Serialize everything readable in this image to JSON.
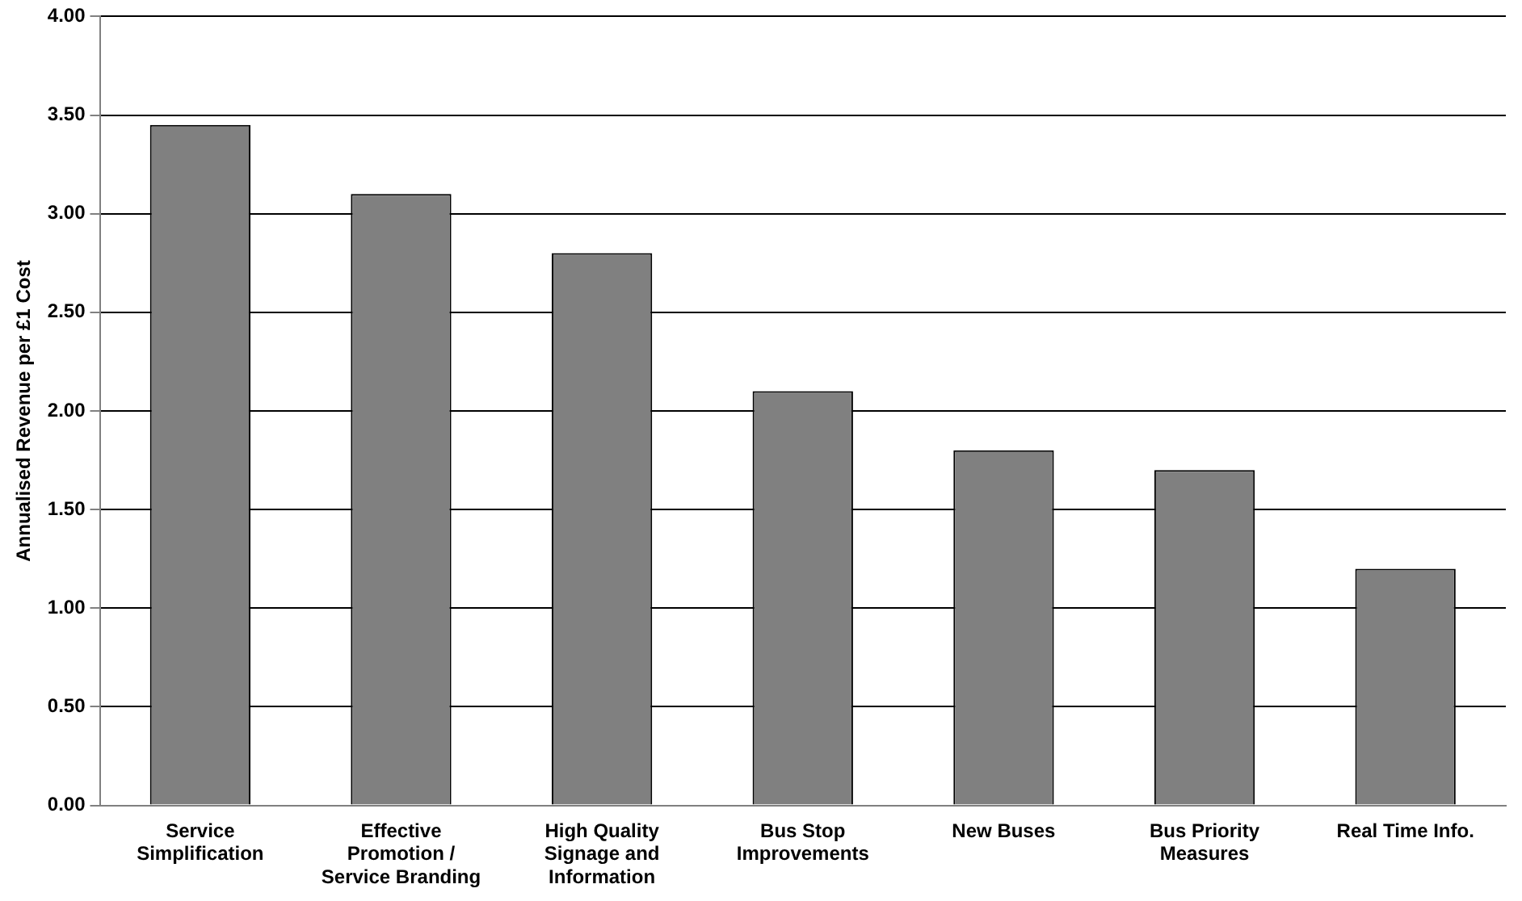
{
  "chart_data": {
    "type": "bar",
    "ylabel": "Annualised Revenue per £1 Cost",
    "categories": [
      "Service Simplification",
      "Effective Promotion / Service Branding",
      "High Quality Signage and Information",
      "Bus Stop Improvements",
      "New Buses",
      "Bus Priority Measures",
      "Real Time Info."
    ],
    "values": [
      3.45,
      3.1,
      2.8,
      2.1,
      1.8,
      1.7,
      1.2
    ],
    "color": "#808080",
    "ylim": [
      0,
      4
    ],
    "yticks": [
      {
        "value": 0,
        "label": "0.00"
      },
      {
        "value": 0.5,
        "label": "0.50"
      },
      {
        "value": 1,
        "label": "1.00"
      },
      {
        "value": 1.5,
        "label": "1.50"
      },
      {
        "value": 2,
        "label": "2.00"
      },
      {
        "value": 2.5,
        "label": "2.50"
      },
      {
        "value": 3,
        "label": "3.00"
      },
      {
        "value": 3.5,
        "label": "3.50"
      },
      {
        "value": 4,
        "label": "4.00"
      }
    ],
    "grid": "y"
  }
}
